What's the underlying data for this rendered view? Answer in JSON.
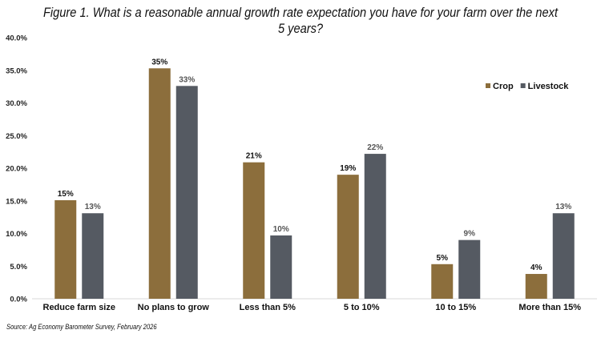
{
  "chart_data": {
    "type": "bar",
    "title": "Figure 1. What is a reasonable annual growth rate expectation you have for your farm over the next 5 years?",
    "source": "Source: Ag Economy Barometer Survey, February 2026",
    "categories": [
      "Reduce farm size",
      "No plans to grow",
      "Less than 5%",
      "5 to 10%",
      "10 to 15%",
      "More than 15%"
    ],
    "series": [
      {
        "name": "Crop",
        "color": "#8c6e3c",
        "values": [
          15.1,
          35.3,
          20.9,
          19.0,
          5.3,
          3.8
        ],
        "labels": [
          "15%",
          "35%",
          "21%",
          "19%",
          "5%",
          "4%"
        ]
      },
      {
        "name": "Livestock",
        "color": "#555a62",
        "values": [
          13.1,
          32.6,
          9.7,
          22.2,
          9.0,
          13.1
        ],
        "labels": [
          "13%",
          "33%",
          "10%",
          "22%",
          "9%",
          "13%"
        ]
      }
    ],
    "ylim": [
      0,
      40
    ],
    "yticks": [
      "0.0%",
      "5.0%",
      "10.0%",
      "15.0%",
      "20.0%",
      "25.0%",
      "30.0%",
      "35.0%",
      "40.0%"
    ],
    "grid": false,
    "legend_position": "top-right"
  }
}
